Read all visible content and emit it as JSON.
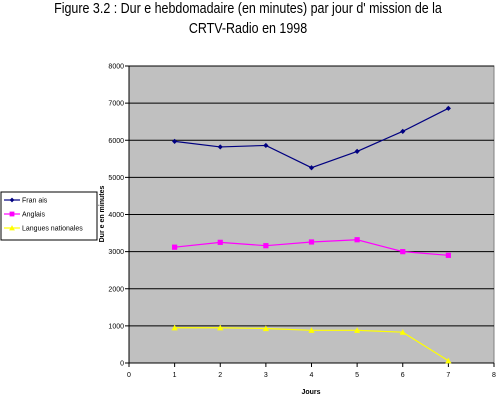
{
  "chart_data": {
    "type": "line",
    "title_line1": "Figure 3.2 : Dur e hebdomadaire (en minutes) par jour d' mission de la",
    "title_line2": "CRTV-Radio en 1998",
    "xlabel": "Jours",
    "ylabel": "Dur e en minutes",
    "xlim": [
      0,
      8
    ],
    "ylim": [
      0,
      8000
    ],
    "x_ticks": [
      0,
      1,
      2,
      3,
      4,
      5,
      6,
      7,
      8
    ],
    "y_ticks": [
      0,
      1000,
      2000,
      3000,
      4000,
      5000,
      6000,
      7000,
      8000
    ],
    "grid": "horizontal",
    "legend_position": "left",
    "plot_background": "#c0c0c0",
    "series": [
      {
        "name": "Fran ais",
        "color": "#000080",
        "marker": "diamond",
        "x": [
          1,
          2,
          3,
          4,
          5,
          6,
          7
        ],
        "values": [
          5970,
          5820,
          5860,
          5260,
          5700,
          6240,
          6860
        ]
      },
      {
        "name": "Anglais",
        "color": "#ff00ff",
        "marker": "square",
        "x": [
          1,
          2,
          3,
          4,
          5,
          6,
          7
        ],
        "values": [
          3120,
          3250,
          3160,
          3260,
          3320,
          3000,
          2900
        ]
      },
      {
        "name": "Langues nationales",
        "color": "#ffff00",
        "marker": "triangle",
        "x": [
          1,
          2,
          3,
          4,
          5,
          6,
          7
        ],
        "values": [
          950,
          950,
          930,
          880,
          880,
          830,
          60
        ]
      }
    ]
  }
}
